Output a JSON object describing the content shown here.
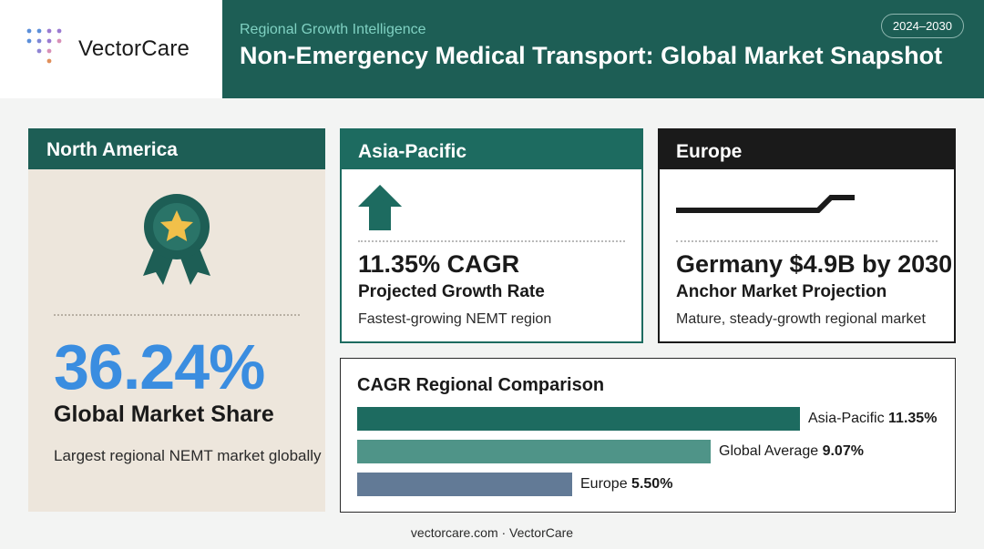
{
  "brand": {
    "name": "VectorCare",
    "dot_colors": [
      "#5b8fd9",
      "#9a7ad1",
      "#e08f5a"
    ]
  },
  "header": {
    "kicker": "Regional Growth Intelligence",
    "title": "Non-Emergency Medical Transport: Global Market Snapshot",
    "years": "2024–2030"
  },
  "north_america": {
    "title": "North America",
    "icon": "award-ribbon-icon",
    "stat": "36.24%",
    "label": "Global Market Share",
    "desc": "Largest regional NEMT market globally"
  },
  "asia_pacific": {
    "title": "Asia-Pacific",
    "icon": "arrow-up-icon",
    "stat": "11.35% CAGR",
    "label": "Projected Growth Rate",
    "desc": "Fastest-growing NEMT region"
  },
  "europe": {
    "title": "Europe",
    "icon": "step-trend-icon",
    "stat": "Germany $4.9B by 2030",
    "label": "Anchor Market Projection",
    "desc": "Mature, steady-growth regional market"
  },
  "comparison": {
    "title": "CAGR Regional Comparison",
    "max": 11.35,
    "bars": [
      {
        "name": "Asia-Pacific",
        "value_label": "11.35%",
        "value": 11.35,
        "color": "#1d6b60"
      },
      {
        "name": "Global Average",
        "value_label": "9.07%",
        "value": 9.07,
        "color": "#4f9488"
      },
      {
        "name": "Europe",
        "value_label": "5.50%",
        "value": 5.5,
        "color": "#627a96"
      }
    ]
  },
  "footer": {
    "text": "vectorcare.com · VectorCare"
  },
  "colors": {
    "primary": "#1d5e55",
    "accent_blue": "#3a8de0",
    "star": "#f1c04a"
  }
}
